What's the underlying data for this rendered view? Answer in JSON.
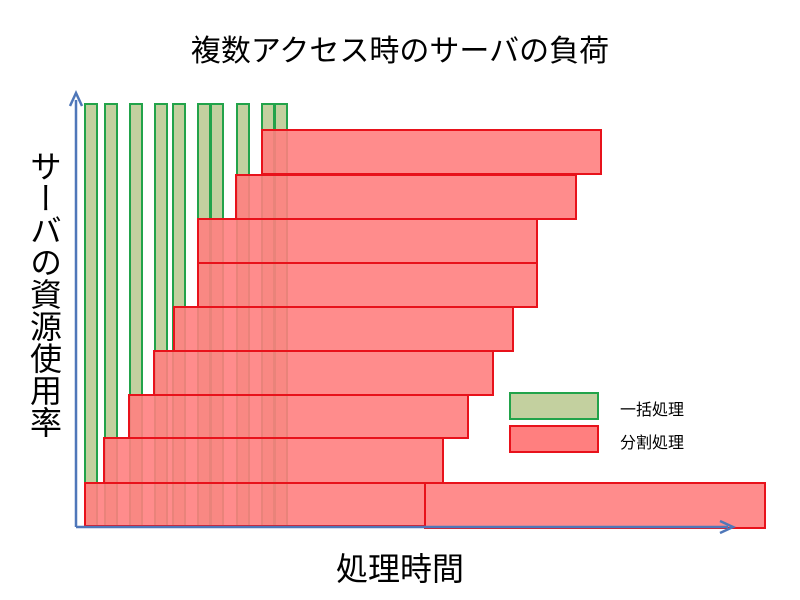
{
  "title": "複数アクセス時のサーバの負荷",
  "y_axis_label": "サーバの資源使用率",
  "x_axis_label": "処理時間",
  "legend": {
    "batch": "一括処理",
    "split": "分割処理"
  },
  "colors": {
    "batch_fill": "#c3d09f",
    "batch_stroke": "#22a34a",
    "split_fill": "#ff7f7f",
    "split_stroke": "#e8121b",
    "axis": "#4f77b9"
  }
}
